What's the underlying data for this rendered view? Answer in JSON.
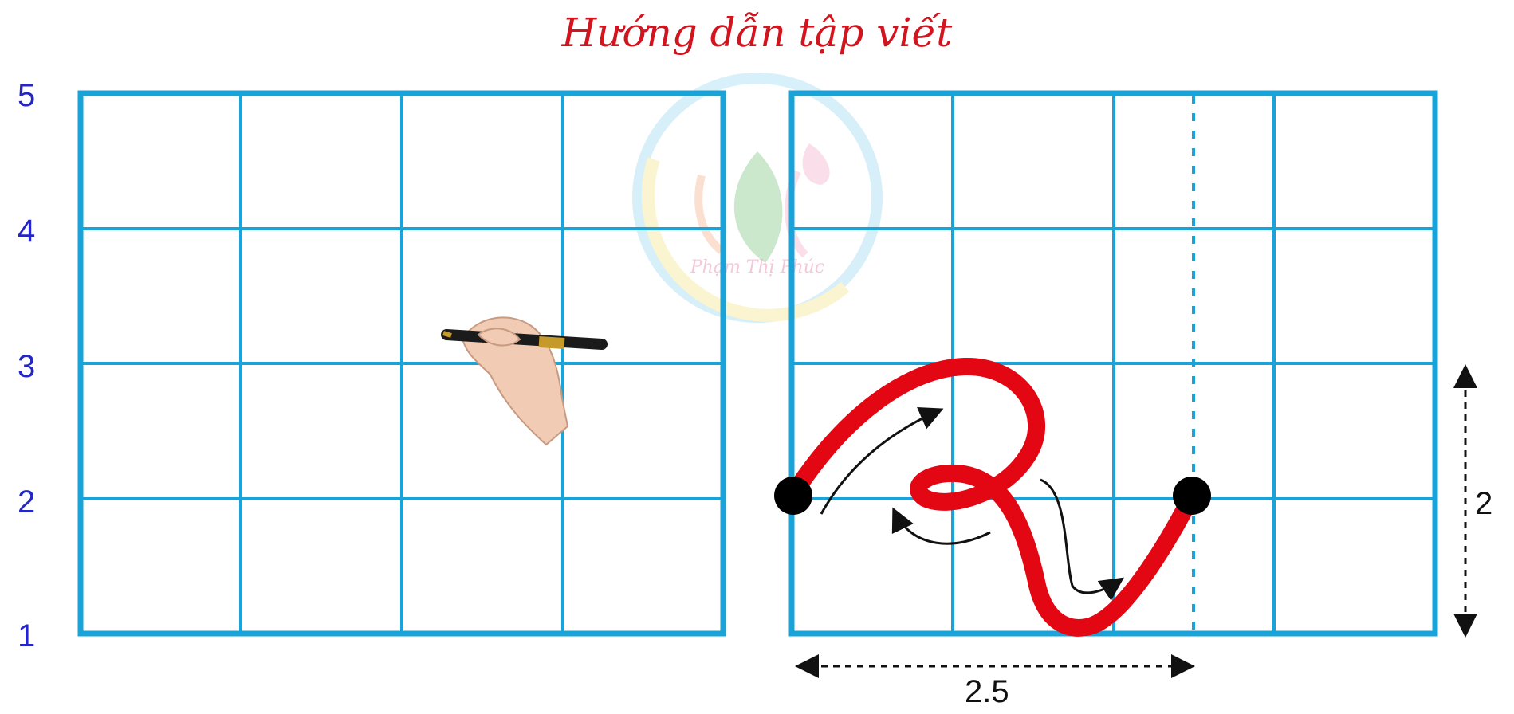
{
  "title": "Hướng dẫn tập viết",
  "row_labels": [
    "5",
    "4",
    "3",
    "2",
    "1"
  ],
  "dimension_width": "2.5",
  "dimension_height": "2",
  "watermark_text": "Phạm Thị Phúc",
  "colors": {
    "grid": "#1aa3d8",
    "stroke": "#e30613",
    "title": "#d2141f",
    "row_label": "#2426c6",
    "arrow": "#111111"
  },
  "icons": {
    "hand": "hand-holding-pen-icon",
    "watermark": "feather-swan-logo-icon"
  }
}
